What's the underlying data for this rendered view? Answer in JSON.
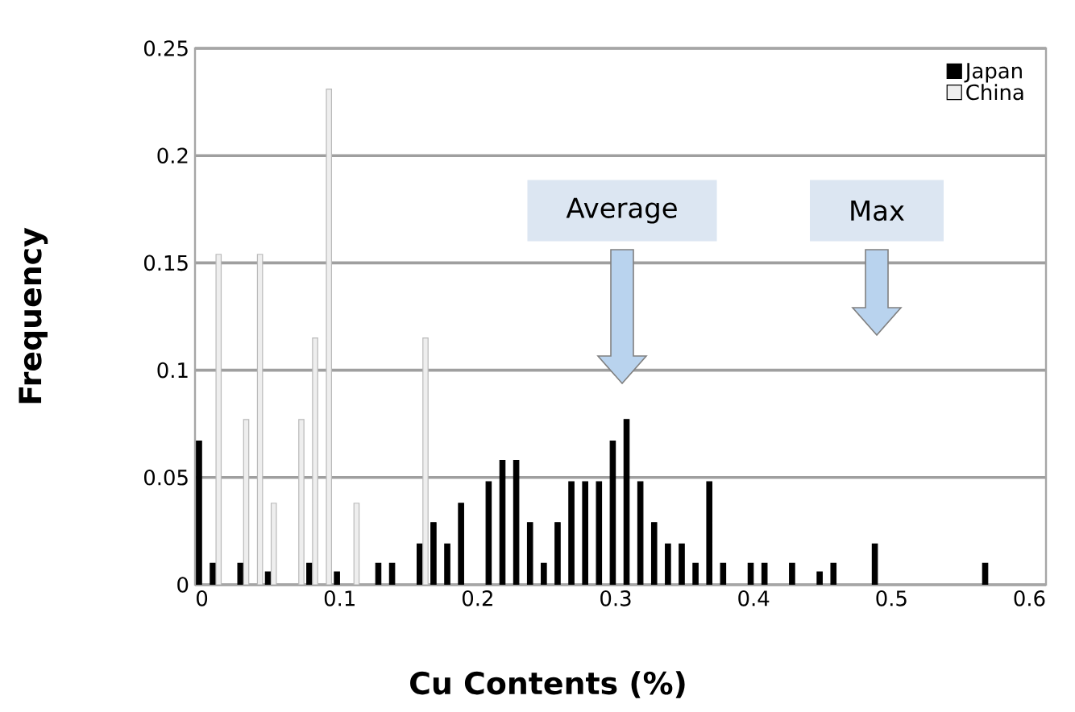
{
  "chart_data": {
    "type": "bar",
    "xlabel": "Cu Contents (%)",
    "ylabel": "Frequency",
    "series": [
      {
        "name": "Japan",
        "color": "#000000",
        "x": [
          0,
          0.01,
          0.03,
          0.05,
          0.08,
          0.1,
          0.13,
          0.14,
          0.16,
          0.17,
          0.18,
          0.19,
          0.21,
          0.22,
          0.23,
          0.24,
          0.25,
          0.26,
          0.27,
          0.28,
          0.29,
          0.3,
          0.31,
          0.32,
          0.33,
          0.34,
          0.35,
          0.36,
          0.37,
          0.38,
          0.4,
          0.41,
          0.43,
          0.45,
          0.46,
          0.49,
          0.57
        ],
        "values": [
          0.067,
          0.01,
          0.01,
          0.006,
          0.01,
          0.006,
          0.01,
          0.01,
          0.019,
          0.029,
          0.019,
          0.038,
          0.048,
          0.058,
          0.058,
          0.029,
          0.01,
          0.029,
          0.048,
          0.048,
          0.048,
          0.067,
          0.077,
          0.048,
          0.029,
          0.019,
          0.019,
          0.01,
          0.048,
          0.01,
          0.01,
          0.01,
          0.01,
          0.006,
          0.01,
          0.019,
          0.01
        ]
      },
      {
        "name": "China",
        "color": "#eeeeee",
        "x": [
          0.01,
          0.03,
          0.04,
          0.05,
          0.07,
          0.08,
          0.09,
          0.11,
          0.16
        ],
        "values": [
          0.154,
          0.077,
          0.154,
          0.038,
          0.077,
          0.115,
          0.231,
          0.038,
          0.115
        ]
      }
    ],
    "xlim": [
      -0.005,
      0.612
    ],
    "ylim": [
      0,
      0.25
    ],
    "xticks": [
      0,
      0.1,
      0.2,
      0.3,
      0.4,
      0.5,
      0.6
    ],
    "yticks": [
      0,
      0.05,
      0.1,
      0.15,
      0.2,
      0.25
    ],
    "grid": "y",
    "legend": "top right",
    "annotations": [
      "Average",
      "Max"
    ]
  }
}
